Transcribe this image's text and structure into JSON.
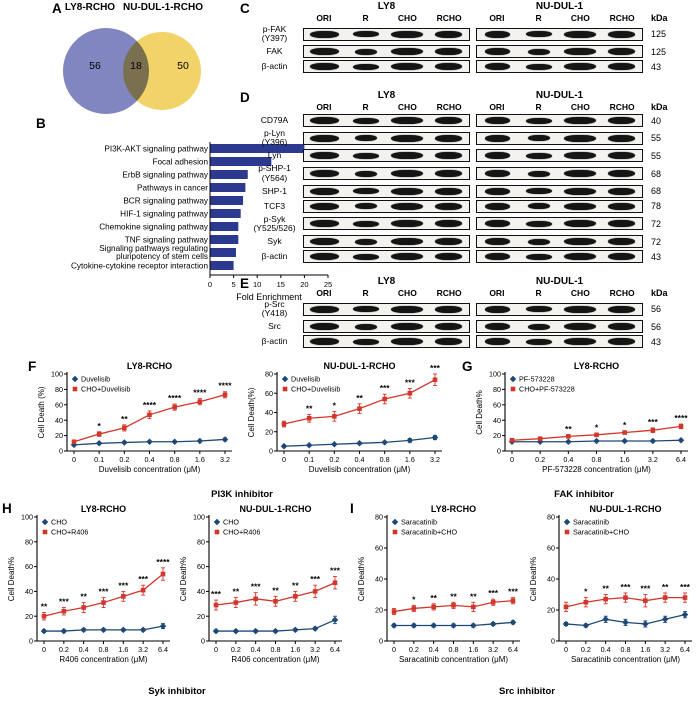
{
  "panel_labels": {
    "a": "A",
    "b": "B",
    "c": "C",
    "d": "D",
    "e": "E",
    "f": "F",
    "g": "G",
    "h": "H",
    "i": "I"
  },
  "venn": {
    "left_title": "LY8-RCHO",
    "right_title": "NU-DUL-1-RCHO",
    "left_count": "56",
    "overlap_count": "18",
    "right_count": "50",
    "left_color": "#8186c1",
    "right_color": "#f2d368"
  },
  "blots": {
    "lanes": [
      "ORI",
      "R",
      "CHO",
      "RCHO"
    ],
    "kda_label": "kDa",
    "groups": [
      "LY8",
      "NU-DUL-1"
    ],
    "panels": {
      "C": {
        "rows": [
          {
            "label": "p-FAK\n(Y397)",
            "kda": "125"
          },
          {
            "label": "FAK",
            "kda": "125"
          },
          {
            "label": "β-actin",
            "kda": "43"
          }
        ]
      },
      "D": {
        "rows": [
          {
            "label": "CD79A",
            "kda": "40"
          },
          {
            "label": "p-Lyn\n(Y396)",
            "kda": "55"
          },
          {
            "label": "Lyn",
            "kda": "55"
          },
          {
            "label": "p-SHP-1\n(Y564)",
            "kda": "68"
          },
          {
            "label": "SHP-1",
            "kda": "68"
          },
          {
            "label": "TCF3",
            "kda": "78"
          },
          {
            "label": "p-Syk\n(Y525/526)",
            "kda": "72"
          },
          {
            "label": "Syk",
            "kda": "72"
          },
          {
            "label": "β-actin",
            "kda": "43"
          }
        ]
      },
      "E": {
        "rows": [
          {
            "label": "p-Src\n(Y418)",
            "kda": "56"
          },
          {
            "label": "Src",
            "kda": "56"
          },
          {
            "label": "β-actin",
            "kda": "43"
          }
        ]
      }
    }
  },
  "footers": {
    "f": "PI3K inhibitor",
    "g": "FAK inhibitor",
    "h": "Syk inhibitor",
    "i": "Src inhibitor"
  },
  "chart_data": [
    {
      "id": "b",
      "type": "bar",
      "orientation": "horizontal",
      "title": "",
      "xlabel": "Fold Enrichment",
      "xlim": [
        0,
        25
      ],
      "xticks": [
        0,
        5,
        10,
        15,
        20,
        25
      ],
      "bar_color": "#2b3a8f",
      "categories": [
        "PI3K-AKT signaling pathway",
        "Focal adhesion",
        "ErbB signaling pathway",
        "Pathways in cancer",
        "BCR signaling pathway",
        "HIF-1 signaling pathway",
        "Chemokine signaling pathway",
        "TNF signaling pathway",
        "Signaling pathways regulating\npluripotency of stem cells",
        "Cytokine-cytokine receptor interaction"
      ],
      "values": [
        20,
        13,
        8,
        7.5,
        7,
        6.5,
        6,
        6,
        5.5,
        5
      ]
    },
    {
      "id": "f1",
      "type": "line",
      "title": "LY8-RCHO",
      "ylabel": "Cell Death (%)",
      "xlabel": "Duvelisib concentration (μM)",
      "categories": [
        "0",
        "0.1",
        "0.2",
        "0.4",
        "0.8",
        "1.6",
        "3.2"
      ],
      "ylim": [
        0,
        100
      ],
      "yticks": [
        0,
        20,
        40,
        60,
        80,
        100
      ],
      "legend_pos": "top-left",
      "series": [
        {
          "name": "Duvelisib",
          "color": "#1e4976",
          "marker": "diamond",
          "values": [
            8,
            10,
            11,
            12,
            12,
            13,
            15
          ],
          "errors": [
            1,
            1,
            1,
            1,
            1,
            1,
            2
          ]
        },
        {
          "name": "CHO+Duvelisib",
          "color": "#d3362b",
          "marker": "square",
          "values": [
            12,
            22,
            30,
            47,
            57,
            64,
            73
          ],
          "errors": [
            2,
            3,
            4,
            5,
            4,
            4,
            4
          ]
        }
      ],
      "sig": [
        "",
        "*",
        "**",
        "****",
        "****",
        "****",
        "****"
      ]
    },
    {
      "id": "f2",
      "type": "line",
      "title": "NU-DUL-1-RCHO",
      "ylabel": "Cell Death(%)",
      "xlabel": "Duvelisib concentration (μM)",
      "categories": [
        "0",
        "0.1",
        "0.2",
        "0.4",
        "0.8",
        "1.6",
        "3.2"
      ],
      "ylim": [
        0,
        80
      ],
      "yticks": [
        0,
        20,
        40,
        60,
        80
      ],
      "legend_pos": "top-left",
      "series": [
        {
          "name": "Duvelisib",
          "color": "#1e4976",
          "marker": "diamond",
          "values": [
            5,
            6,
            7,
            8,
            9,
            11,
            14
          ],
          "errors": [
            1,
            1,
            1,
            1,
            1,
            2,
            2
          ]
        },
        {
          "name": "CHO+Duvelisib",
          "color": "#d3362b",
          "marker": "square",
          "values": [
            28,
            34,
            36,
            44,
            54,
            60,
            74
          ],
          "errors": [
            3,
            4,
            5,
            5,
            5,
            5,
            6
          ]
        }
      ],
      "sig": [
        "",
        "**",
        "*",
        "**",
        "***",
        "***",
        "***"
      ]
    },
    {
      "id": "g1",
      "type": "line",
      "title": "LY8-RCHO",
      "ylabel": "Cell Death%",
      "xlabel": "PF-573228 concentration (μM)",
      "categories": [
        "0",
        "0.2",
        "0.4",
        "0.8",
        "1.6",
        "3.2",
        "6.4"
      ],
      "ylim": [
        0,
        100
      ],
      "yticks": [
        0,
        20,
        40,
        60,
        80,
        100
      ],
      "legend_pos": "top-left",
      "series": [
        {
          "name": "PF-573228",
          "color": "#1e4976",
          "marker": "diamond",
          "values": [
            12,
            12,
            12,
            13,
            13,
            13,
            14
          ],
          "errors": [
            1,
            1,
            1,
            1,
            1,
            1,
            1
          ]
        },
        {
          "name": "CHO+PF-573228",
          "color": "#d3362b",
          "marker": "square",
          "values": [
            14,
            16,
            19,
            21,
            24,
            27,
            32
          ],
          "errors": [
            2,
            2,
            2,
            2,
            2,
            3,
            3
          ]
        }
      ],
      "sig": [
        "",
        "",
        "**",
        "*",
        "*",
        "***",
        "****"
      ]
    },
    {
      "id": "h1",
      "type": "line",
      "title": "LY8-RCHO",
      "ylabel": "Cell Death%",
      "xlabel": "R406 concentration (μM)",
      "categories": [
        "0",
        "0.2",
        "0.4",
        "0.8",
        "1.6",
        "3.2",
        "6.4"
      ],
      "ylim": [
        0,
        100
      ],
      "yticks": [
        0,
        20,
        40,
        60,
        80,
        100
      ],
      "legend_pos": "top-left",
      "series": [
        {
          "name": "CHO",
          "color": "#1e4976",
          "marker": "diamond",
          "values": [
            8,
            8,
            9,
            9,
            9,
            9,
            12
          ],
          "errors": [
            1,
            1,
            1,
            1,
            1,
            1,
            2
          ]
        },
        {
          "name": "CHO+R406",
          "color": "#d3362b",
          "marker": "square",
          "values": [
            20,
            24,
            27,
            31,
            36,
            41,
            54
          ],
          "errors": [
            3,
            3,
            4,
            4,
            4,
            4,
            5
          ]
        }
      ],
      "sig": [
        "**",
        "***",
        "**",
        "***",
        "***",
        "***",
        "****"
      ]
    },
    {
      "id": "h2",
      "type": "line",
      "title": "NU-DUL-1-RCHO",
      "ylabel": "Cell Death%",
      "xlabel": "R406 concentration (μM)",
      "categories": [
        "0",
        "0.2",
        "0.4",
        "0.8",
        "1.6",
        "3.2",
        "6.4"
      ],
      "ylim": [
        0,
        100
      ],
      "yticks": [
        0,
        20,
        40,
        60,
        80,
        100
      ],
      "legend_pos": "top-left",
      "series": [
        {
          "name": "CHO",
          "color": "#1e4976",
          "marker": "diamond",
          "values": [
            8,
            8,
            8,
            8,
            9,
            10,
            17
          ],
          "errors": [
            1,
            1,
            1,
            1,
            1,
            1,
            3
          ]
        },
        {
          "name": "CHO+R406",
          "color": "#d3362b",
          "marker": "square",
          "values": [
            29,
            31,
            34,
            32,
            36,
            40,
            47
          ],
          "errors": [
            4,
            4,
            5,
            4,
            4,
            5,
            5
          ]
        }
      ],
      "sig": [
        "***",
        "**",
        "***",
        "**",
        "**",
        "***",
        "***"
      ]
    },
    {
      "id": "i1",
      "type": "line",
      "title": "LY8-RCHO",
      "ylabel": "Cell Death%",
      "xlabel": "Saracatinib concentration (μM)",
      "categories": [
        "0",
        "0.2",
        "0.4",
        "0.8",
        "1.6",
        "3.2",
        "6.4"
      ],
      "ylim": [
        0,
        80
      ],
      "yticks": [
        0,
        20,
        40,
        60,
        80
      ],
      "legend_pos": "top-left",
      "series": [
        {
          "name": "Saracatinib",
          "color": "#1e4976",
          "marker": "diamond",
          "values": [
            10,
            10,
            10,
            10,
            10,
            11,
            12
          ],
          "errors": [
            1,
            1,
            1,
            1,
            1,
            1,
            1
          ]
        },
        {
          "name": "Saracatinib+CHO",
          "color": "#d3362b",
          "marker": "square",
          "values": [
            19,
            21,
            22,
            23,
            22,
            25,
            26
          ],
          "errors": [
            2,
            2,
            2,
            2,
            3,
            2,
            2
          ]
        }
      ],
      "sig": [
        "",
        "*",
        "**",
        "**",
        "**",
        "***",
        "***"
      ]
    },
    {
      "id": "i2",
      "type": "line",
      "title": "NU-DUL-1-RCHO",
      "ylabel": "Cell Death%",
      "xlabel": "Saracatinib concentration (μM)",
      "categories": [
        "0",
        "0.2",
        "0.4",
        "0.8",
        "1.6",
        "3.2",
        "6.4"
      ],
      "ylim": [
        0,
        80
      ],
      "yticks": [
        0,
        20,
        40,
        60,
        80
      ],
      "legend_pos": "top-left",
      "series": [
        {
          "name": "Saracatinib",
          "color": "#1e4976",
          "marker": "diamond",
          "values": [
            11,
            10,
            14,
            12,
            11,
            14,
            17
          ],
          "errors": [
            1,
            1,
            2,
            2,
            2,
            2,
            2
          ]
        },
        {
          "name": "Saracatinib+CHO",
          "color": "#d3362b",
          "marker": "square",
          "values": [
            22,
            25,
            27,
            28,
            26,
            28,
            28
          ],
          "errors": [
            3,
            3,
            3,
            3,
            4,
            3,
            3
          ]
        }
      ],
      "sig": [
        "",
        "*",
        "**",
        "***",
        "***",
        "**",
        "***"
      ]
    }
  ]
}
